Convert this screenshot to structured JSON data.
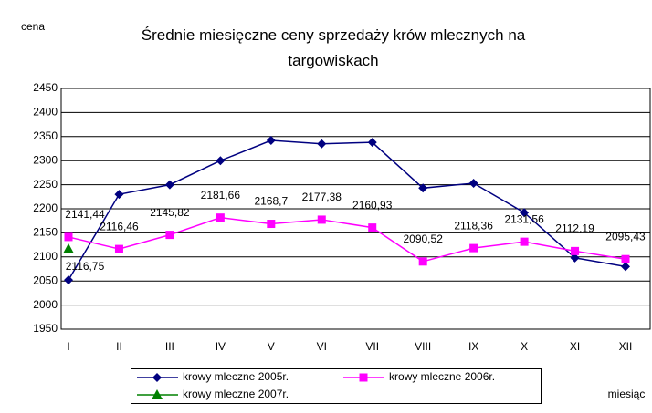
{
  "chart_data": {
    "type": "line",
    "title": "Średnie miesięczne ceny sprzedaży krów mlecznych na targowiskach",
    "y_label": "cena",
    "x_label": "miesiąc",
    "categories": [
      "I",
      "II",
      "III",
      "IV",
      "V",
      "VI",
      "VII",
      "VIII",
      "IX",
      "X",
      "XI",
      "XII"
    ],
    "series": [
      {
        "name": "krowy mleczne 2005r.",
        "color": "#000080",
        "marker": "diamond",
        "values": [
          2052,
          2230,
          2250,
          2300,
          2342,
          2335,
          2338,
          2243,
          2253,
          2192,
          2098,
          2080
        ]
      },
      {
        "name": "krowy mleczne 2006r.",
        "color": "#ff00ff",
        "marker": "square",
        "values": [
          2141.44,
          2116.46,
          2145.82,
          2181.66,
          2168.7,
          2177.38,
          2160.93,
          2090.52,
          2118.36,
          2131.56,
          2112.19,
          2095.43
        ],
        "value_labels": [
          "2141,44",
          "2116,46",
          "2145,82",
          "2181,66",
          "2168,7",
          "2177,38",
          "2160,93",
          "2090,52",
          "2118,36",
          "2131,56",
          "2112,19",
          "2095,43"
        ]
      },
      {
        "name": "krowy mleczne 2007r.",
        "color": "#008000",
        "marker": "triangle",
        "values": [
          2116.75,
          null,
          null,
          null,
          null,
          null,
          null,
          null,
          null,
          null,
          null,
          null
        ],
        "value_labels": [
          "2116,75",
          null,
          null,
          null,
          null,
          null,
          null,
          null,
          null,
          null,
          null,
          null
        ]
      }
    ],
    "ylim": [
      1950,
      2450
    ],
    "yticks": [
      1950,
      2000,
      2050,
      2100,
      2150,
      2200,
      2250,
      2300,
      2350,
      2400,
      2450
    ],
    "grid": true,
    "legend": "bottom"
  }
}
